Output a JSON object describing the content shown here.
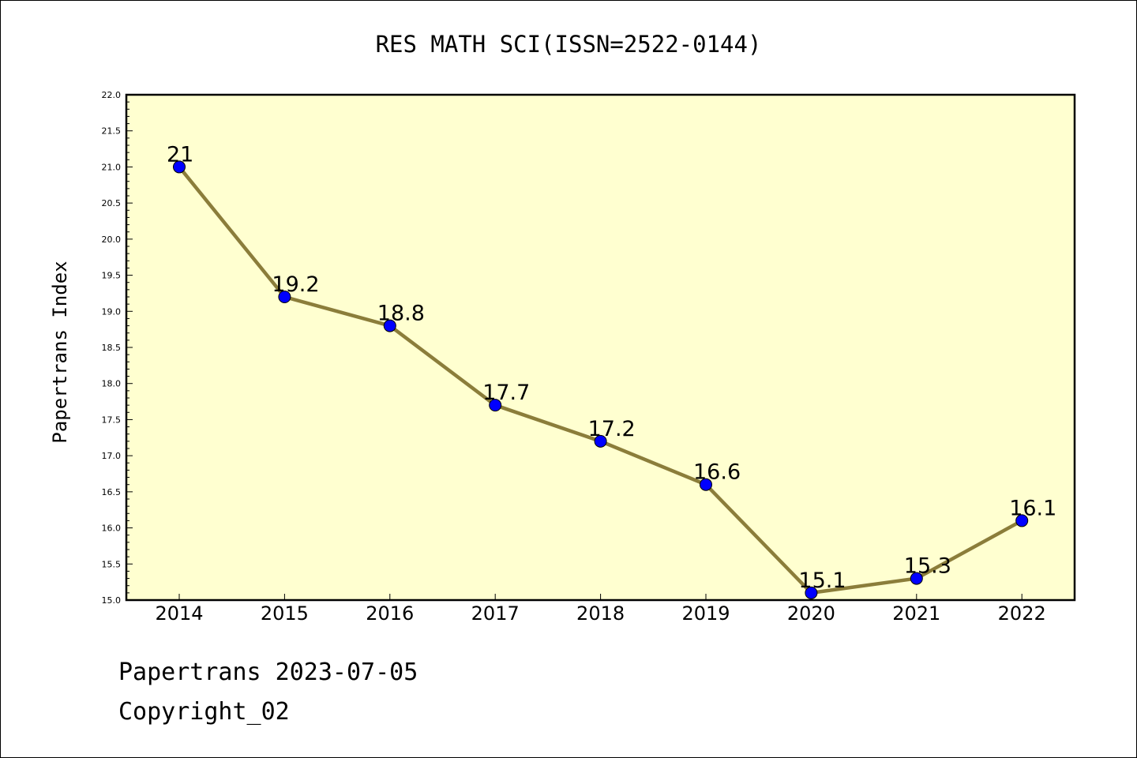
{
  "chart_data": {
    "type": "line",
    "title": "RES MATH SCI(ISSN=2522-0144)",
    "ylabel": "Papertrans Index",
    "xlabel": "",
    "categories": [
      "2014",
      "2015",
      "2016",
      "2017",
      "2018",
      "2019",
      "2020",
      "2021",
      "2022"
    ],
    "values": [
      21,
      19.2,
      18.8,
      17.7,
      17.2,
      16.6,
      15.1,
      15.3,
      16.1
    ],
    "data_labels": [
      "21",
      "19.2",
      "18.8",
      "17.7",
      "17.2",
      "16.6",
      "15.1",
      "15.3",
      "16.1"
    ],
    "ylim": [
      15.0,
      22.0
    ],
    "yticks": [
      15.0,
      15.5,
      16.0,
      16.5,
      17.0,
      17.5,
      18.0,
      18.5,
      19.0,
      19.5,
      20.0,
      20.5,
      21.0,
      21.5,
      22.0
    ],
    "ytick_labels": [
      "15.0",
      "15.5",
      "16.0",
      "16.5",
      "17.0",
      "17.5",
      "18.0",
      "18.5",
      "19.0",
      "19.5",
      "20.0",
      "20.5",
      "21.0",
      "21.5",
      "22.0"
    ],
    "grid": false,
    "colors": {
      "plot_background": "#ffffd0",
      "line": "#8b7d3a",
      "marker": "#0000ff"
    }
  },
  "footer": {
    "line1": "Papertrans 2023-07-05",
    "line2": "Copyright_02"
  }
}
